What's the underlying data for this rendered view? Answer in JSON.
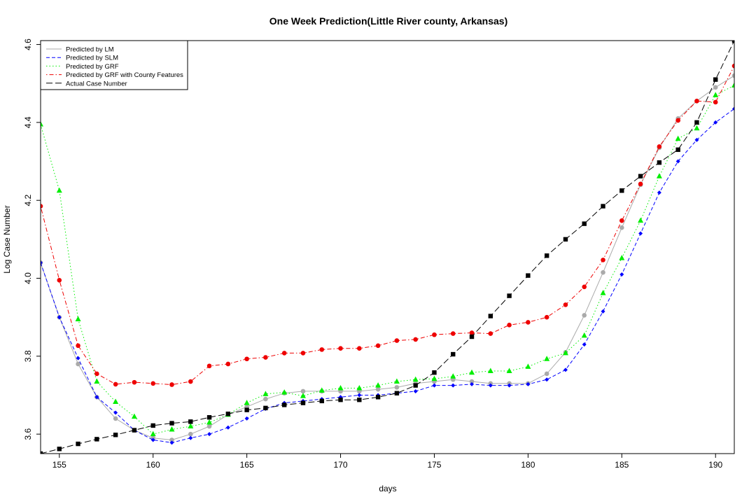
{
  "chart_data": {
    "type": "line",
    "title": "One Week Prediction(Little River county, Arkansas)",
    "xlabel": "days",
    "ylabel": "Log Case Number",
    "xlim": [
      154,
      191
    ],
    "ylim": [
      3.55,
      4.61
    ],
    "x_ticks": [
      155,
      160,
      165,
      170,
      175,
      180,
      185,
      190
    ],
    "y_ticks": [
      3.6,
      3.8,
      4.0,
      4.2,
      4.4,
      4.6
    ],
    "x_tick_labels": [
      "155",
      "160",
      "165",
      "170",
      "175",
      "180",
      "185",
      "190"
    ],
    "y_tick_labels": [
      "3.6",
      "3.8",
      "4.0",
      "4.2",
      "4.4",
      "4.6"
    ],
    "grid": false,
    "legend_position": "top-left",
    "x": [
      154,
      155,
      156,
      157,
      158,
      159,
      160,
      161,
      162,
      163,
      164,
      165,
      166,
      167,
      168,
      169,
      170,
      171,
      172,
      173,
      174,
      175,
      176,
      177,
      178,
      179,
      180,
      181,
      182,
      183,
      184,
      185,
      186,
      187,
      188,
      189,
      190,
      191
    ],
    "series": [
      {
        "name": "Predicted by LM",
        "color": "#aaaaaa",
        "line_style": "solid",
        "marker": "circle",
        "values": [
          4.04,
          3.9,
          3.78,
          3.695,
          3.64,
          3.61,
          3.59,
          3.585,
          3.6,
          3.62,
          3.65,
          3.67,
          3.69,
          3.705,
          3.71,
          3.71,
          3.71,
          3.71,
          3.715,
          3.72,
          3.73,
          3.735,
          3.74,
          3.735,
          3.73,
          3.73,
          3.73,
          3.755,
          3.81,
          3.905,
          4.015,
          4.13,
          4.24,
          4.335,
          4.41,
          4.455,
          4.49,
          4.52
        ]
      },
      {
        "name": "Predicted by SLM",
        "color": "#0000ff",
        "line_style": "dashed",
        "marker": "diamond",
        "values": [
          4.04,
          3.9,
          3.795,
          3.695,
          3.655,
          3.61,
          3.585,
          3.578,
          3.59,
          3.6,
          3.617,
          3.64,
          3.665,
          3.68,
          3.685,
          3.69,
          3.695,
          3.7,
          3.7,
          3.705,
          3.71,
          3.725,
          3.725,
          3.728,
          3.725,
          3.725,
          3.728,
          3.74,
          3.765,
          3.83,
          3.915,
          4.01,
          4.115,
          4.22,
          4.3,
          4.355,
          4.4,
          4.435
        ]
      },
      {
        "name": "Predicted by GRF",
        "color": "#00ee00",
        "line_style": "dotted",
        "marker": "triangle",
        "values": [
          4.395,
          4.225,
          3.895,
          3.735,
          3.683,
          3.645,
          3.6,
          3.612,
          3.62,
          3.63,
          3.65,
          3.68,
          3.703,
          3.707,
          3.698,
          3.712,
          3.718,
          3.718,
          3.725,
          3.735,
          3.74,
          3.742,
          3.748,
          3.758,
          3.762,
          3.762,
          3.773,
          3.793,
          3.808,
          3.853,
          3.962,
          4.052,
          4.148,
          4.262,
          4.358,
          4.385,
          4.47,
          4.495
        ]
      },
      {
        "name": "Predicted by GRF with County Features",
        "color": "#ee0000",
        "line_style": "dotdash",
        "marker": "circle",
        "values": [
          4.185,
          3.995,
          3.827,
          3.755,
          3.728,
          3.733,
          3.73,
          3.727,
          3.735,
          3.775,
          3.78,
          3.793,
          3.797,
          3.808,
          3.808,
          3.817,
          3.82,
          3.82,
          3.827,
          3.84,
          3.843,
          3.855,
          3.858,
          3.86,
          3.858,
          3.88,
          3.887,
          3.9,
          3.932,
          3.978,
          4.047,
          4.148,
          4.242,
          4.338,
          4.405,
          4.455,
          4.452,
          4.545
        ]
      },
      {
        "name": "Actual Case Number",
        "color": "#000000",
        "line_style": "longdash",
        "marker": "square",
        "values": [
          3.55,
          3.562,
          3.575,
          3.587,
          3.598,
          3.61,
          3.622,
          3.628,
          3.632,
          3.643,
          3.652,
          3.662,
          3.667,
          3.675,
          3.68,
          3.685,
          3.688,
          3.688,
          3.695,
          3.705,
          3.725,
          3.758,
          3.805,
          3.85,
          3.903,
          3.955,
          4.007,
          4.058,
          4.1,
          4.14,
          4.185,
          4.225,
          4.262,
          4.297,
          4.33,
          4.4,
          4.51,
          4.61
        ]
      }
    ]
  }
}
